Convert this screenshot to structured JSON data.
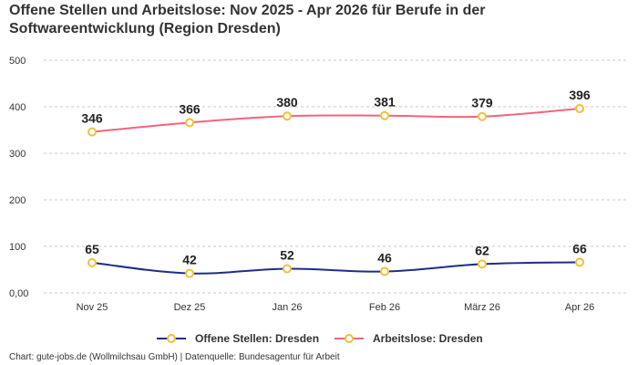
{
  "chart_data": {
    "type": "line",
    "title": "Offene Stellen und Arbeitslose: Nov 2025 - Apr 2026 für Berufe in der Softwareentwicklung (Region Dresden)",
    "categories": [
      "Nov 25",
      "Dez 25",
      "Jan 26",
      "Feb 26",
      "März 26",
      "Apr 26"
    ],
    "series": [
      {
        "name": "Offene Stellen: Dresden",
        "values": [
          65,
          42,
          52,
          46,
          62,
          66
        ],
        "color": "#1f2d86"
      },
      {
        "name": "Arbeitslose: Dresden",
        "values": [
          346,
          366,
          380,
          381,
          379,
          396
        ],
        "color": "#f0657e"
      }
    ],
    "y_ticks": [
      "0,00",
      "100",
      "200",
      "300",
      "400",
      "500"
    ],
    "ylim": [
      0,
      500
    ],
    "grid": true,
    "legend": "bottom-center",
    "marker_color": "#f2c037",
    "footer": "Chart: gute-jobs.de (Wollmilchsau GmbH) | Datenquelle: Bundesagentur für Arbeit"
  }
}
